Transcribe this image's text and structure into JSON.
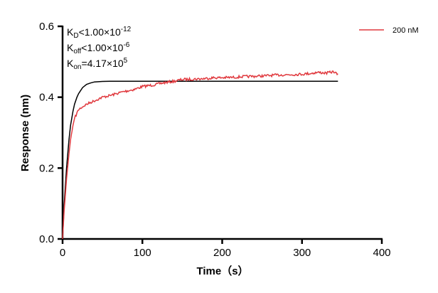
{
  "chart_data": {
    "type": "line",
    "xlabel": "Time（s）",
    "ylabel": "Response (nm)",
    "xlim": [
      0,
      400
    ],
    "ylim": [
      0,
      0.6
    ],
    "xticks": [
      "0",
      "100",
      "200",
      "300",
      "400"
    ],
    "yticks": [
      "0.0",
      "0.2",
      "0.4",
      "0.6"
    ],
    "grid": false,
    "legend_position": "top-right",
    "annotations": {
      "kd": {
        "main": "K",
        "sub": "D",
        "rest": "<1.00×10",
        "sup": "-12"
      },
      "koff": {
        "main": "K",
        "sub": "off",
        "rest": "<1.00×10",
        "sup": "-6"
      },
      "kon": {
        "main": "K",
        "sub": "on",
        "rest": "=4.17×10",
        "sup": "5"
      }
    },
    "series": [
      {
        "name": "200 nM",
        "color": "#e0393e",
        "x": [
          0,
          2,
          5,
          8,
          10,
          13,
          15,
          18,
          20,
          25,
          30,
          40,
          50,
          60,
          75,
          90,
          100,
          115,
          125,
          140,
          150,
          165,
          175,
          190,
          200,
          215,
          225,
          240,
          250,
          265,
          275,
          290,
          300,
          310,
          320,
          330,
          340,
          345
        ],
        "y": [
          0,
          0.08,
          0.17,
          0.24,
          0.28,
          0.32,
          0.34,
          0.355,
          0.365,
          0.373,
          0.38,
          0.39,
          0.4,
          0.405,
          0.415,
          0.422,
          0.43,
          0.435,
          0.44,
          0.445,
          0.45,
          0.451,
          0.452,
          0.455,
          0.455,
          0.456,
          0.458,
          0.459,
          0.46,
          0.462,
          0.463,
          0.464,
          0.465,
          0.467,
          0.47,
          0.468,
          0.472,
          0.463
        ]
      },
      {
        "color": "#000000",
        "x": [
          0,
          2,
          5,
          8,
          10,
          13,
          15,
          18,
          20,
          25,
          30,
          35,
          40,
          50,
          60,
          80,
          345
        ],
        "y": [
          0,
          0.095,
          0.2,
          0.28,
          0.32,
          0.36,
          0.38,
          0.4,
          0.41,
          0.427,
          0.436,
          0.44,
          0.443,
          0.4445,
          0.445,
          0.445,
          0.445
        ]
      }
    ]
  }
}
